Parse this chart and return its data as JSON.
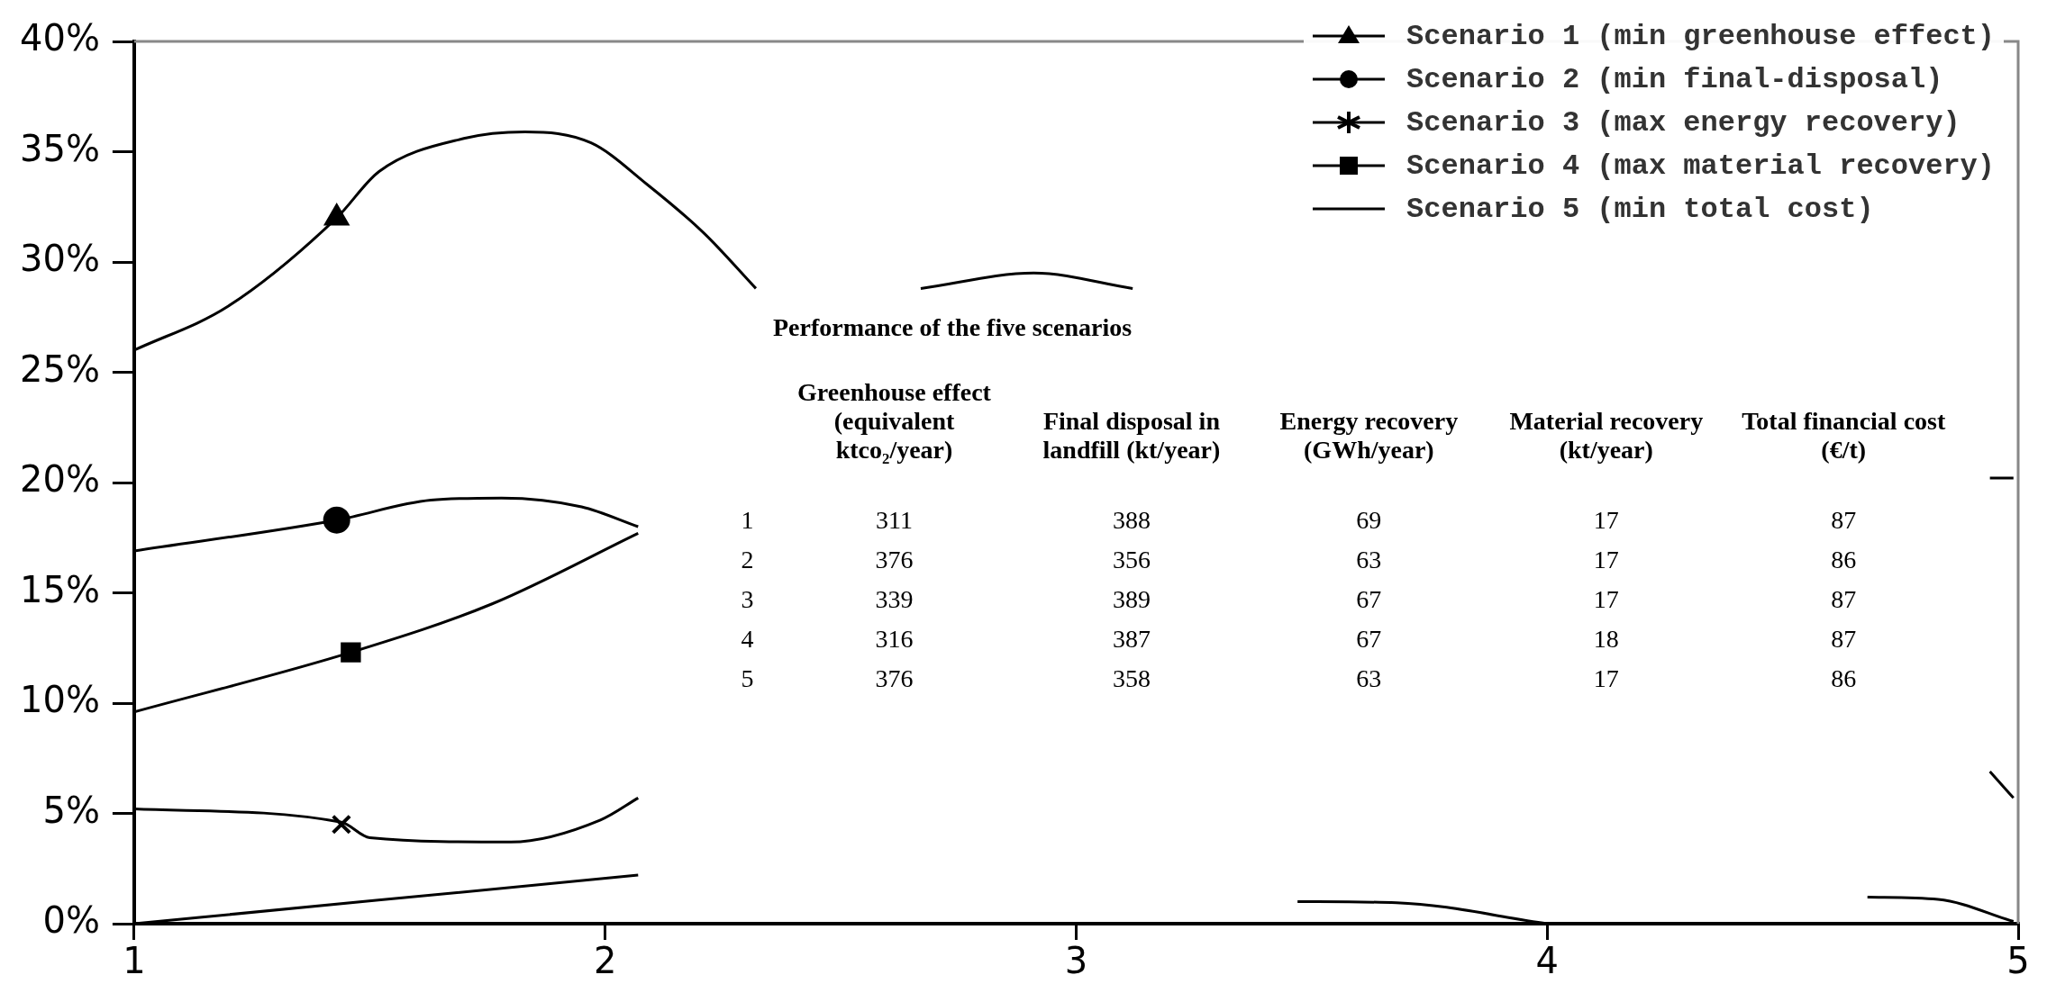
{
  "chart_data": {
    "type": "line",
    "xlim": [
      1,
      5
    ],
    "xticks": [
      1,
      2,
      3,
      4,
      5
    ],
    "ylim": [
      0,
      40
    ],
    "yticks": [
      {
        "value": 0,
        "label": "0%"
      },
      {
        "value": 5,
        "label": "5%"
      },
      {
        "value": 10,
        "label": "10%"
      },
      {
        "value": 15,
        "label": "15%"
      },
      {
        "value": 20,
        "label": "20%"
      },
      {
        "value": 25,
        "label": "25%"
      },
      {
        "value": 30,
        "label": "30%"
      },
      {
        "value": 35,
        "label": "35%"
      },
      {
        "value": 40,
        "label": "40%"
      }
    ],
    "legend": "top right",
    "line_style": "solid",
    "series": [
      {
        "name": "Scenario 1 (min greenhouse effect)",
        "color": "#000000",
        "marker": "none",
        "x": [
          1,
          1.2,
          1.43,
          1.52,
          1.7,
          1.83,
          1.97,
          2.09,
          2.21,
          2.32,
          2.5,
          2.67,
          2.91,
          3.12
        ],
        "values": [
          26.0,
          28.0,
          32.0,
          34.1,
          35.6,
          35.9,
          35.4,
          33.5,
          31.3,
          28.8,
          null,
          28.8,
          29.5,
          28.8
        ]
      },
      {
        "type": "scatter",
        "color": "#000000",
        "marker": "triangle",
        "x": [
          1.43
        ],
        "values": [
          32.0
        ]
      },
      {
        "name": "Scenario 2 (min final-disposal)",
        "color": "#000000",
        "marker": "none",
        "x": [
          1,
          1.43,
          1.63,
          1.78,
          1.95,
          2.07,
          4.5,
          4.94,
          4.99
        ],
        "values": [
          16.9,
          18.3,
          19.2,
          19.3,
          18.9,
          18.0,
          null,
          20.2,
          20.2
        ]
      },
      {
        "type": "scatter",
        "color": "#000000",
        "marker": "circle",
        "x": [
          1.43
        ],
        "values": [
          18.3
        ]
      },
      {
        "name": "Scenario 3 (max energy recovery)",
        "color": "#000000",
        "marker": "none",
        "x": [
          1,
          1.44,
          1.5,
          1.8,
          1.99,
          2.07,
          4.5,
          4.94,
          4.99
        ],
        "values": [
          5.2,
          4.6,
          3.9,
          3.7,
          4.7,
          5.7,
          null,
          6.9,
          5.7
        ]
      },
      {
        "type": "scatter",
        "color": "#000000",
        "marker": "cross",
        "x": [
          1.44
        ],
        "values": [
          4.5
        ]
      },
      {
        "name": "Scenario 4 (max material recovery)",
        "color": "#000000",
        "marker": "none",
        "x": [
          1,
          1.46,
          1.76,
          2.07,
          4.4,
          4.68,
          4.83,
          4.99
        ],
        "values": [
          9.6,
          12.3,
          14.5,
          17.7,
          null,
          1.2,
          1.1,
          0.1
        ]
      },
      {
        "type": "scatter",
        "color": "#000000",
        "marker": "square",
        "x": [
          1.46
        ],
        "values": [
          12.3
        ]
      },
      {
        "name": "Scenario 5 (min total cost)",
        "color": "#000000",
        "marker": "none",
        "x": [
          1,
          2.07,
          3.0,
          3.47,
          3.68,
          4.0
        ],
        "values": [
          0,
          2.2,
          null,
          1.0,
          0.95,
          0
        ]
      }
    ],
    "annotations": [
      "Performance of the five scenarios",
      "Greenhouse effect (equivalent ktco₂/year)",
      "Final disposal in landfill (kt/year)",
      "Energy recovery (GWh/year)",
      "Material recovery (kt/year)",
      "Total financial cost (€/t)",
      "1",
      "311",
      "388",
      "69",
      "17",
      "87",
      "2",
      "376",
      "356",
      "63",
      "17",
      "86",
      "3",
      "339",
      "389",
      "67",
      "17",
      "87",
      "4",
      "316",
      "387",
      "67",
      "18",
      "87",
      "5",
      "376",
      "358",
      "63",
      "17",
      "86"
    ]
  }
}
